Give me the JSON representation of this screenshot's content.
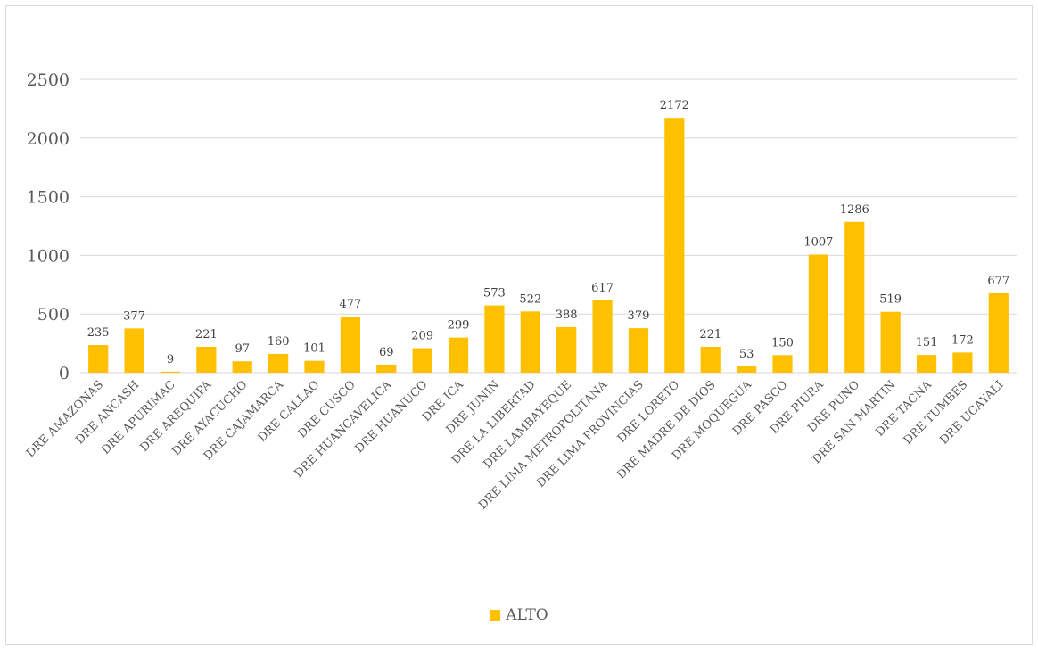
{
  "chart_data": {
    "type": "bar",
    "categories": [
      "DRE AMAZONAS",
      "DRE ANCASH",
      "DRE APURIMAC",
      "DRE AREQUIPA",
      "DRE AYACUCHO",
      "DRE CAJAMARCA",
      "DRE CALLAO",
      "DRE CUSCO",
      "DRE HUANCAVELICA",
      "DRE HUANUCO",
      "DRE ICA",
      "DRE JUNIN",
      "DRE LA LIBERTAD",
      "DRE LAMBAYEQUE",
      "DRE LIMA METROPOLITANA",
      "DRE LIMA PROVINCIAS",
      "DRE LORETO",
      "DRE MADRE DE DIOS",
      "DRE MOQUEGUA",
      "DRE PASCO",
      "DRE PIURA",
      "DRE PUNO",
      "DRE SAN MARTIN",
      "DRE TACNA",
      "DRE TUMBES",
      "DRE UCAYALI"
    ],
    "series": [
      {
        "name": "ALTO",
        "values": [
          235,
          377,
          9,
          221,
          97,
          160,
          101,
          477,
          69,
          209,
          299,
          573,
          522,
          388,
          617,
          379,
          2172,
          221,
          53,
          150,
          1007,
          1286,
          519,
          151,
          172,
          677
        ]
      }
    ],
    "yticks": [
      "0",
      "500",
      "1000",
      "1500",
      "2000",
      "2500"
    ],
    "ylim": [
      0,
      2500
    ],
    "grid": true,
    "legend_position": "bottom",
    "colors": {
      "bar": "#FFC000",
      "grid": "#d9d9d9"
    }
  }
}
